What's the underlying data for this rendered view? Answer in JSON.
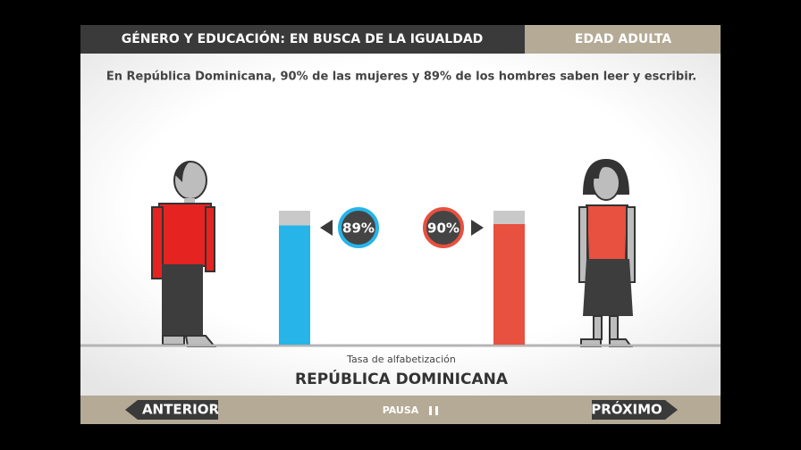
{
  "header": {
    "title": "GÉNERO Y EDUCACIÓN: EN BUSCA DE LA IGUALDAD",
    "section": "EDAD ADULTA"
  },
  "subtitle": "En República Dominicana, 90% de las mujeres y 89% de los hombres saben leer y escribir.",
  "bars": {
    "ylim": [
      0,
      100
    ],
    "items": [
      {
        "value": 89,
        "label": "89%",
        "color": "#27b4e9"
      },
      {
        "value": 90,
        "label": "90%",
        "color": "#e8503f"
      }
    ]
  },
  "axis_label": "Tasa de alfabetización",
  "country": "REPÚBLICA DOMINICANA",
  "nav": {
    "previous": "ANTERIOR",
    "pause": "PAUSA",
    "next": "PRÓXIMO"
  }
}
